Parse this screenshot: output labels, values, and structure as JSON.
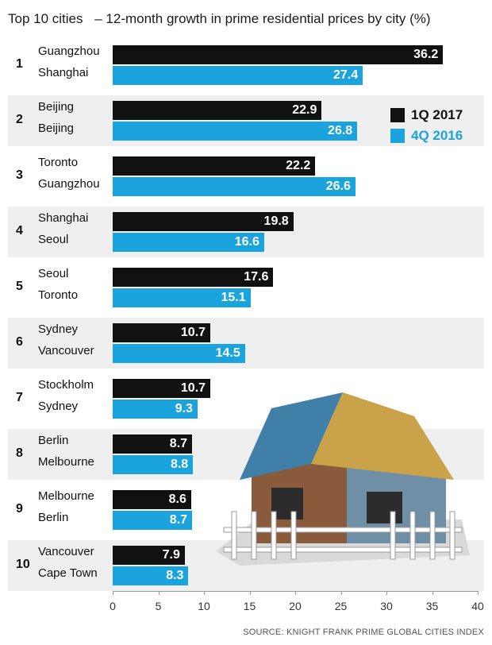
{
  "title": {
    "lead": "Top 10 cities",
    "main": "– 12-month growth in prime residential prices by city (%)"
  },
  "chart_data": {
    "type": "bar",
    "orientation": "horizontal",
    "xlim": [
      0,
      40
    ],
    "xticks": [
      "0",
      "5",
      "10",
      "15",
      "20",
      "25",
      "30",
      "35",
      "40"
    ],
    "series": [
      {
        "name": "1Q 2017",
        "color": "#111111"
      },
      {
        "name": "4Q 2016",
        "color": "#1aa3dd"
      }
    ],
    "rows": [
      {
        "rank": "1",
        "city_1q2017": "Guangzhou",
        "value_1q2017": 36.2,
        "city_4q2016": "Shanghai",
        "value_4q2016": 27.4
      },
      {
        "rank": "2",
        "city_1q2017": "Beijing",
        "value_1q2017": 22.9,
        "city_4q2016": "Beijing",
        "value_4q2016": 26.8
      },
      {
        "rank": "3",
        "city_1q2017": "Toronto",
        "value_1q2017": 22.2,
        "city_4q2016": "Guangzhou",
        "value_4q2016": 26.6
      },
      {
        "rank": "4",
        "city_1q2017": "Shanghai",
        "value_1q2017": 19.8,
        "city_4q2016": "Seoul",
        "value_4q2016": 16.6
      },
      {
        "rank": "5",
        "city_1q2017": "Seoul",
        "value_1q2017": 17.6,
        "city_4q2016": "Toronto",
        "value_4q2016": 15.1
      },
      {
        "rank": "6",
        "city_1q2017": "Sydney",
        "value_1q2017": 10.7,
        "city_4q2016": "Vancouver",
        "value_4q2016": 14.5
      },
      {
        "rank": "7",
        "city_1q2017": "Stockholm",
        "value_1q2017": 10.7,
        "city_4q2016": "Sydney",
        "value_4q2016": 9.3
      },
      {
        "rank": "8",
        "city_1q2017": "Berlin",
        "value_1q2017": 8.7,
        "city_4q2016": "Melbourne",
        "value_4q2016": 8.8
      },
      {
        "rank": "9",
        "city_1q2017": "Melbourne",
        "value_1q2017": 8.6,
        "city_4q2016": "Berlin",
        "value_4q2016": 8.7
      },
      {
        "rank": "10",
        "city_1q2017": "Vancouver",
        "value_1q2017": 7.9,
        "city_4q2016": "Cape Town",
        "value_4q2016": 8.3
      }
    ],
    "legend_position": "right",
    "grid": false
  },
  "source": "SOURCE: KNIGHT FRANK PRIME GLOBAL CITIES INDEX"
}
